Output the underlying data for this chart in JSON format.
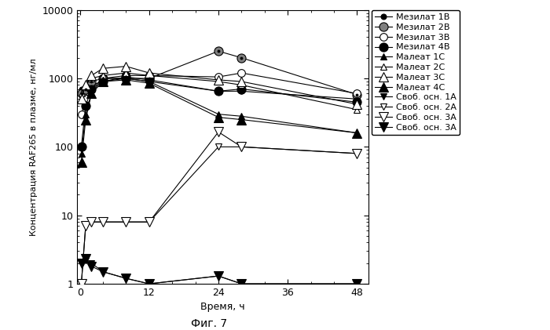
{
  "xlabel": "Время, ч",
  "ylabel": "Концентрация RAF265 в плазме, нг/мл",
  "caption": "Фиг. 7",
  "series_configs": [
    {
      "label": "Мезилат 1В",
      "x": [
        0.25,
        1,
        2,
        4,
        8,
        12,
        24,
        28,
        48
      ],
      "y": [
        700,
        700,
        800,
        900,
        1000,
        900,
        650,
        650,
        500
      ],
      "marker": "o",
      "ms": 5,
      "mfc": "black",
      "mec": "black",
      "ls": "-",
      "lw": 0.8
    },
    {
      "label": "Мезилат 2В",
      "x": [
        0.25,
        1,
        2,
        4,
        8,
        12,
        24,
        28,
        48
      ],
      "y": [
        600,
        700,
        900,
        1000,
        1000,
        1000,
        2500,
        2000,
        580
      ],
      "marker": "o",
      "ms": 8,
      "mfc": "gray",
      "mec": "black",
      "ls": "-",
      "lw": 0.8,
      "double_marker": true
    },
    {
      "label": "Мезилат 3В",
      "x": [
        0.25,
        1,
        2,
        4,
        8,
        12,
        24,
        28,
        48
      ],
      "y": [
        300,
        500,
        700,
        1000,
        1100,
        1100,
        1050,
        1200,
        600
      ],
      "marker": "o",
      "ms": 7,
      "mfc": "white",
      "mec": "black",
      "ls": "-",
      "lw": 0.8
    },
    {
      "label": "Мезилат 4В",
      "x": [
        0.25,
        1,
        2,
        4,
        8,
        12,
        24,
        28,
        48
      ],
      "y": [
        100,
        400,
        700,
        900,
        1050,
        950,
        650,
        700,
        450
      ],
      "marker": "o",
      "ms": 8,
      "mfc": "black",
      "mec": "black",
      "ls": "-",
      "lw": 0.8
    },
    {
      "label": "Малеат 1С",
      "x": [
        0.25,
        1,
        2,
        4,
        8,
        12,
        24,
        28,
        48
      ],
      "y": [
        80,
        300,
        600,
        1000,
        1000,
        900,
        300,
        280,
        160
      ],
      "marker": "^",
      "ms": 6,
      "mfc": "black",
      "mec": "black",
      "ls": "-",
      "lw": 0.8
    },
    {
      "label": "Малеат 2С",
      "x": [
        0.25,
        1,
        2,
        4,
        8,
        12,
        24,
        28,
        48
      ],
      "y": [
        600,
        800,
        1000,
        1100,
        1200,
        1100,
        900,
        800,
        350
      ],
      "marker": "^",
      "ms": 6,
      "mfc": "white",
      "mec": "black",
      "ls": "-",
      "lw": 0.8
    },
    {
      "label": "Малеат 3С",
      "x": [
        0.25,
        1,
        2,
        4,
        8,
        12,
        24,
        28,
        48
      ],
      "y": [
        500,
        800,
        1100,
        1400,
        1500,
        1200,
        950,
        900,
        420
      ],
      "marker": "^",
      "ms": 8,
      "mfc": "white",
      "mec": "black",
      "ls": "-",
      "lw": 0.8
    },
    {
      "label": "Малеат 4С",
      "x": [
        0.25,
        1,
        2,
        4,
        8,
        12,
        24,
        28,
        48
      ],
      "y": [
        60,
        250,
        600,
        900,
        950,
        850,
        270,
        250,
        160
      ],
      "marker": "^",
      "ms": 8,
      "mfc": "black",
      "mec": "black",
      "ls": "-",
      "lw": 0.8
    },
    {
      "label": "Своб. осн. 1А",
      "x": [
        0.25,
        1,
        2,
        4,
        8,
        12,
        24,
        28,
        48
      ],
      "y": [
        2.0,
        2.2,
        2.0,
        1.5,
        1.2,
        1.0,
        1.3,
        1.0,
        1.0
      ],
      "marker": "v",
      "ms": 6,
      "mfc": "black",
      "mec": "black",
      "ls": "-",
      "lw": 0.8
    },
    {
      "label": "Своб. осн. 2А",
      "x": [
        0.25,
        1,
        2,
        4,
        8,
        12,
        24,
        28,
        48
      ],
      "y": [
        1.0,
        7.0,
        8.0,
        8.0,
        8.0,
        8.0,
        100.0,
        100.0,
        80.0
      ],
      "marker": "v",
      "ms": 6,
      "mfc": "white",
      "mec": "black",
      "ls": "-",
      "lw": 0.8
    },
    {
      "label": "Своб. осн. 3А",
      "x": [
        0.25,
        1,
        2,
        4,
        8,
        12,
        24,
        28,
        48
      ],
      "y": [
        1.0,
        7.0,
        8.0,
        8.0,
        8.0,
        8.0,
        165.0,
        100.0,
        80.0
      ],
      "marker": "v",
      "ms": 8,
      "mfc": "white",
      "mec": "black",
      "ls": "-",
      "lw": 0.8
    },
    {
      "label": "Своб. осн. 3А",
      "x": [
        0.25,
        1,
        2,
        4,
        8,
        12,
        24,
        28,
        48
      ],
      "y": [
        2.0,
        2.3,
        1.8,
        1.5,
        1.2,
        1.0,
        1.3,
        1.0,
        1.0
      ],
      "marker": "v",
      "ms": 8,
      "mfc": "black",
      "mec": "black",
      "ls": "-",
      "lw": 0.8
    }
  ]
}
